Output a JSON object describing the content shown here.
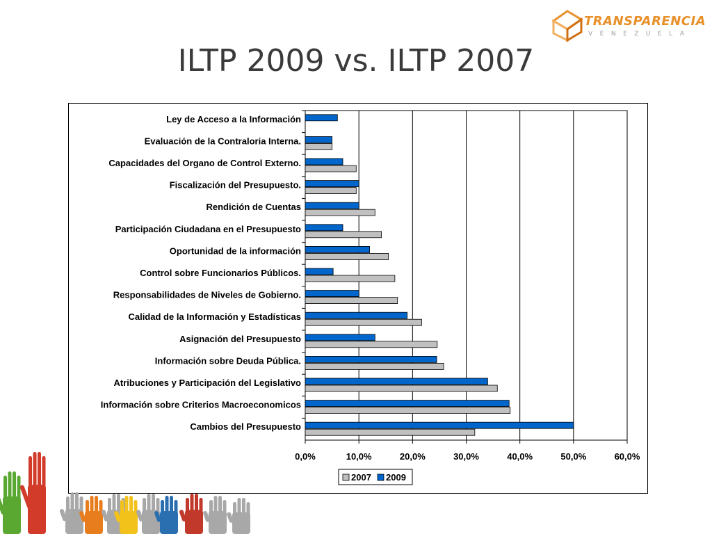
{
  "logo": {
    "word": "TRANSPARENCIA",
    "sub": "VENEZUELA",
    "color": "#e8902a"
  },
  "slide": {
    "title": "ILTP 2009 vs. ILTP 2007"
  },
  "chart_data": {
    "type": "bar",
    "orientation": "horizontal",
    "categories": [
      "Ley de Acceso a la Información",
      "Evaluación de la Contraloria Interna.",
      "Capacidades del Organo de Control Externo.",
      "Fiscalización del Presupuesto.",
      "Rendición de Cuentas",
      "Participación Ciudadana en el Presupuesto",
      "Oportunidad de la información",
      "Control sobre Funcionarios Públicos.",
      "Responsabilidades de Niveles de Gobierno.",
      "Calidad de la Información y Estadísticas",
      "Asignación del Presupuesto",
      "Información sobre Deuda Pública.",
      "Atribuciones y Participación del Legislativo",
      "Información sobre Criterios Macroeconomicos",
      "Cambios del Presupuesto"
    ],
    "series": [
      {
        "name": "2007",
        "color": "#c0c0c0",
        "values": [
          null,
          5.0,
          9.5,
          9.5,
          13.0,
          14.2,
          15.5,
          16.7,
          17.2,
          21.7,
          24.6,
          25.8,
          35.8,
          38.2,
          31.6
        ]
      },
      {
        "name": "2009",
        "color": "#0066cc",
        "values": [
          6.0,
          5.0,
          7.0,
          10.0,
          10.0,
          7.0,
          12.0,
          5.2,
          10.0,
          19.0,
          13.0,
          24.5,
          34.0,
          38.0,
          50.0
        ]
      }
    ],
    "x_ticks": [
      "0,0%",
      "10,0%",
      "20,0%",
      "30,0%",
      "40,0%",
      "50,0%",
      "60,0%"
    ],
    "xlim": [
      0,
      60
    ],
    "grid": true,
    "legend_position": "bottom-center"
  },
  "decor": {
    "hand_colors": [
      "#d23a2a",
      "#5aa832",
      "#e87d1e",
      "#f2c21b",
      "#2a6fb0",
      "#c0392b",
      "#a8a8a8",
      "#8bc34a"
    ]
  }
}
